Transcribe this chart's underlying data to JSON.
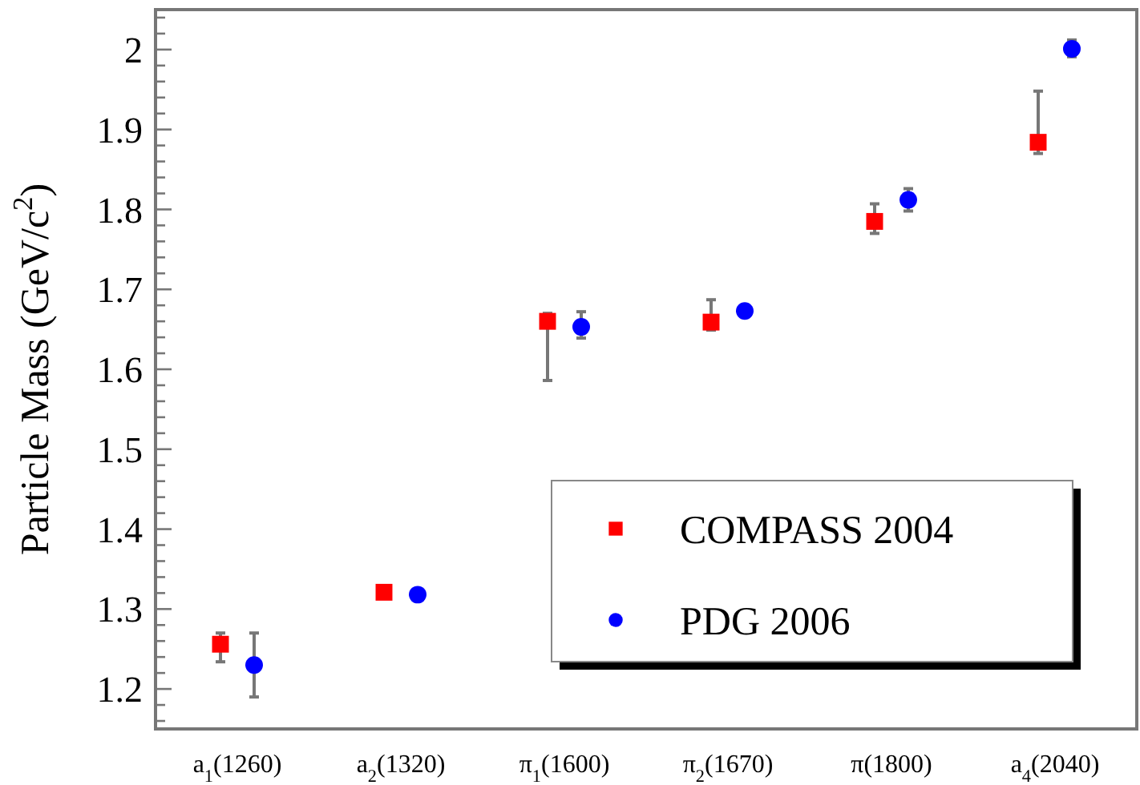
{
  "chart_data": {
    "type": "scatter",
    "ylabel": "Particle Mass (GeV/c$^{2}$)",
    "categories": [
      "a$_{1}$(1260)",
      "a$_{2}$(1320)",
      "π$_{1}$(1600)",
      "π$_{2}$(1670)",
      "π(1800)",
      "a$_{4}$(2040)"
    ],
    "ylim": [
      1.15,
      2.05
    ],
    "yticks": [
      {
        "value": 1.16,
        "label": null
      },
      {
        "value": 1.18,
        "label": null
      },
      1.2,
      {
        "value": 1.22,
        "label": null
      },
      {
        "value": 1.24,
        "label": null
      },
      {
        "value": 1.26,
        "label": null
      },
      {
        "value": 1.28,
        "label": null
      },
      1.3,
      {
        "value": 1.32,
        "label": null
      },
      {
        "value": 1.34,
        "label": null
      },
      {
        "value": 1.36,
        "label": null
      },
      {
        "value": 1.38,
        "label": null
      },
      1.4,
      {
        "value": 1.42,
        "label": null
      },
      {
        "value": 1.44,
        "label": null
      },
      {
        "value": 1.46,
        "label": null
      },
      {
        "value": 1.48,
        "label": null
      },
      1.5,
      {
        "value": 1.52,
        "label": null
      },
      {
        "value": 1.54,
        "label": null
      },
      {
        "value": 1.56,
        "label": null
      },
      {
        "value": 1.58,
        "label": null
      },
      1.6,
      {
        "value": 1.62,
        "label": null
      },
      {
        "value": 1.64,
        "label": null
      },
      {
        "value": 1.66,
        "label": null
      },
      {
        "value": 1.68,
        "label": null
      },
      1.7,
      {
        "value": 1.72,
        "label": null
      },
      {
        "value": 1.74,
        "label": null
      },
      {
        "value": 1.76,
        "label": null
      },
      {
        "value": 1.78,
        "label": null
      },
      1.8,
      {
        "value": 1.82,
        "label": null
      },
      {
        "value": 1.84,
        "label": null
      },
      {
        "value": 1.86,
        "label": null
      },
      {
        "value": 1.88,
        "label": null
      },
      1.9,
      {
        "value": 1.92,
        "label": null
      },
      {
        "value": 1.94,
        "label": null
      },
      {
        "value": 1.96,
        "label": null
      },
      {
        "value": 1.98,
        "label": null
      },
      2,
      {
        "value": 2.02,
        "label": null
      },
      {
        "value": 2.04,
        "label": null
      }
    ],
    "legend": "bottom right",
    "grid": false,
    "series": [
      {
        "name": "COMPASS 2004",
        "color": "#ff0000",
        "marker": "square",
        "values": [
          1.256,
          1.321,
          1.66,
          1.659,
          1.785,
          1.884
        ],
        "errors": [
          [
            1.234,
            1.27
          ],
          null,
          [
            1.586,
            1.67
          ],
          [
            1.649,
            1.687
          ],
          [
            1.77,
            1.807
          ],
          [
            1.87,
            1.948
          ]
        ]
      },
      {
        "name": "PDG 2006",
        "color": "#0000ff",
        "marker": "circle",
        "values": [
          1.23,
          1.318,
          1.653,
          1.673,
          1.812,
          2.001
        ],
        "errors": [
          [
            1.19,
            1.27
          ],
          null,
          [
            1.639,
            1.672
          ],
          null,
          [
            1.798,
            1.826
          ],
          [
            1.991,
            2.012
          ]
        ]
      }
    ]
  }
}
